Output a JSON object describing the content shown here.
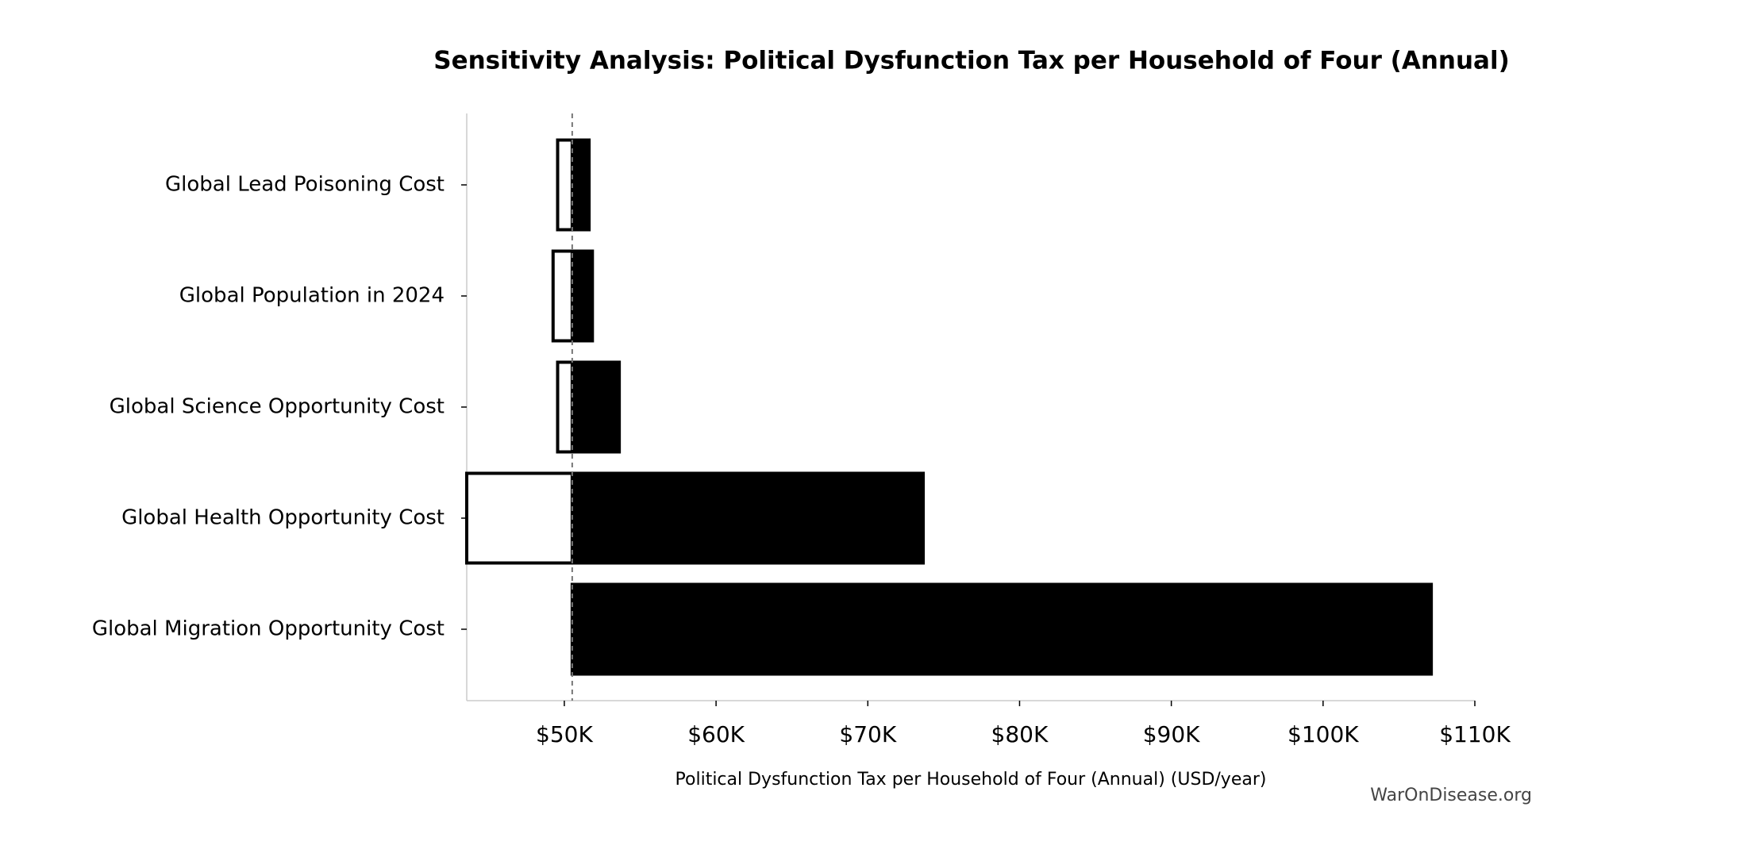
{
  "chart_data": {
    "type": "tornado",
    "title": "Sensitivity Analysis: Political Dysfunction Tax per Household of Four (Annual)",
    "x_label": "Political Dysfunction Tax per Household of Four (Annual) (USD/year)",
    "watermark": "WarOnDisease.org",
    "categories": [
      "Global Lead Poisoning Cost",
      "Global Population in 2024",
      "Global Science Opportunity Cost",
      "Global Health Opportunity Cost",
      "Global Migration Opportunity Cost"
    ],
    "baseline": 50520,
    "low": [
      49560,
      49260,
      49560,
      43570,
      50520
    ],
    "high": [
      51630,
      51850,
      53620,
      73650,
      107130
    ],
    "low_color": "#ffffff",
    "high_color": "#000000",
    "xlim": [
      43570,
      110000
    ],
    "xticks": [
      {
        "value": 50000,
        "label": "$50K"
      },
      {
        "value": 60000,
        "label": "$60K"
      },
      {
        "value": 70000,
        "label": "$70K"
      },
      {
        "value": 80000,
        "label": "$80K"
      },
      {
        "value": 90000,
        "label": "$90K"
      },
      {
        "value": 100000,
        "label": "$100K"
      },
      {
        "value": 110000,
        "label": "$110K"
      }
    ]
  }
}
